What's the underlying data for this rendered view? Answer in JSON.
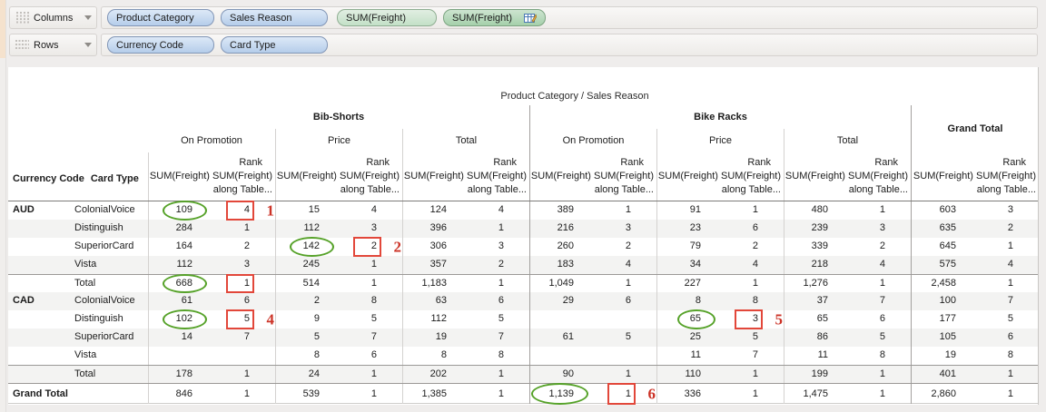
{
  "shelves": {
    "columns": {
      "label": "Columns",
      "pills": [
        {
          "label": "Product Category",
          "type": "dimension"
        },
        {
          "label": "Sales Reason",
          "type": "dimension"
        },
        {
          "label": "SUM(Freight)",
          "type": "measure"
        },
        {
          "label": "SUM(Freight)",
          "type": "measure",
          "calc": true
        }
      ]
    },
    "rows": {
      "label": "Rows",
      "pills": [
        {
          "label": "Currency Code",
          "type": "dimension"
        },
        {
          "label": "Card Type",
          "type": "dimension"
        }
      ]
    }
  },
  "table": {
    "title": "Product Category / Sales Reason",
    "row_header_labels": [
      "Currency Code",
      "Card Type"
    ],
    "column_groups": [
      {
        "label": "Bib-Shorts",
        "subgroups": [
          "On Promotion",
          "Price",
          "Total"
        ]
      },
      {
        "label": "Bike Racks",
        "subgroups": [
          "On Promotion",
          "Price",
          "Total"
        ]
      },
      {
        "label": "Grand Total",
        "subgroups": []
      }
    ],
    "measure_labels": {
      "sum": "SUM(Freight)",
      "rank_line": "Rank",
      "along_line": "along Table..."
    },
    "rows": [
      {
        "currency": "AUD",
        "card": "ColonialVoice",
        "values": [
          "109",
          "4",
          "15",
          "4",
          "124",
          "4",
          "389",
          "1",
          "91",
          "1",
          "480",
          "1",
          "603",
          "3"
        ]
      },
      {
        "currency": "",
        "card": "Distinguish",
        "values": [
          "284",
          "1",
          "112",
          "3",
          "396",
          "1",
          "216",
          "3",
          "23",
          "6",
          "239",
          "3",
          "635",
          "2"
        ]
      },
      {
        "currency": "",
        "card": "SuperiorCard",
        "values": [
          "164",
          "2",
          "142",
          "2",
          "306",
          "3",
          "260",
          "2",
          "79",
          "2",
          "339",
          "2",
          "645",
          "1"
        ]
      },
      {
        "currency": "",
        "card": "Vista",
        "values": [
          "112",
          "3",
          "245",
          "1",
          "357",
          "2",
          "183",
          "4",
          "34",
          "4",
          "218",
          "4",
          "575",
          "4"
        ]
      },
      {
        "currency": "",
        "card": "Total",
        "total": true,
        "values": [
          "668",
          "1",
          "514",
          "1",
          "1,183",
          "1",
          "1,049",
          "1",
          "227",
          "1",
          "1,276",
          "1",
          "2,458",
          "1"
        ]
      },
      {
        "currency": "CAD",
        "card": "ColonialVoice",
        "values": [
          "61",
          "6",
          "2",
          "8",
          "63",
          "6",
          "29",
          "6",
          "8",
          "8",
          "37",
          "7",
          "100",
          "7"
        ]
      },
      {
        "currency": "",
        "card": "Distinguish",
        "values": [
          "102",
          "5",
          "9",
          "5",
          "112",
          "5",
          "",
          "",
          "65",
          "3",
          "65",
          "6",
          "177",
          "5"
        ]
      },
      {
        "currency": "",
        "card": "SuperiorCard",
        "values": [
          "14",
          "7",
          "5",
          "7",
          "19",
          "7",
          "61",
          "5",
          "25",
          "5",
          "86",
          "5",
          "105",
          "6"
        ]
      },
      {
        "currency": "",
        "card": "Vista",
        "values": [
          "",
          "",
          "8",
          "6",
          "8",
          "8",
          "",
          "",
          "11",
          "7",
          "11",
          "8",
          "19",
          "8"
        ]
      },
      {
        "currency": "",
        "card": "Total",
        "total": true,
        "values": [
          "178",
          "1",
          "24",
          "1",
          "202",
          "1",
          "90",
          "1",
          "110",
          "1",
          "199",
          "1",
          "401",
          "1"
        ]
      },
      {
        "currency": "Grand Total",
        "card": "",
        "grand": true,
        "values": [
          "846",
          "1",
          "539",
          "1",
          "1,385",
          "1",
          "1,139",
          "1",
          "336",
          "1",
          "1,475",
          "1",
          "2,860",
          "1"
        ]
      }
    ]
  },
  "annotations": [
    {
      "row": 0,
      "oval_col": 0,
      "box_col": 1,
      "label": "1"
    },
    {
      "row": 2,
      "oval_col": 2,
      "box_col": 3,
      "label": "2"
    },
    {
      "row": 4,
      "oval_col": 0,
      "box_col": 1,
      "label": ""
    },
    {
      "row": 6,
      "oval_col": 0,
      "box_col": 1,
      "label": "4"
    },
    {
      "row": 6,
      "oval_col": 8,
      "box_col": 9,
      "label": "5"
    },
    {
      "row": 10,
      "oval_col": 6,
      "box_col": 7,
      "label": "6"
    }
  ],
  "colors": {
    "oval_green": "#56a229",
    "box_red": "#e2473a",
    "label_red": "#cc3327",
    "dimension_pill_blue": "#b5cdea",
    "measure_pill_green": "#c3e0c7",
    "calc_pill_green": "#a5d0ab",
    "row_band_gray": "#f3f3f2"
  }
}
